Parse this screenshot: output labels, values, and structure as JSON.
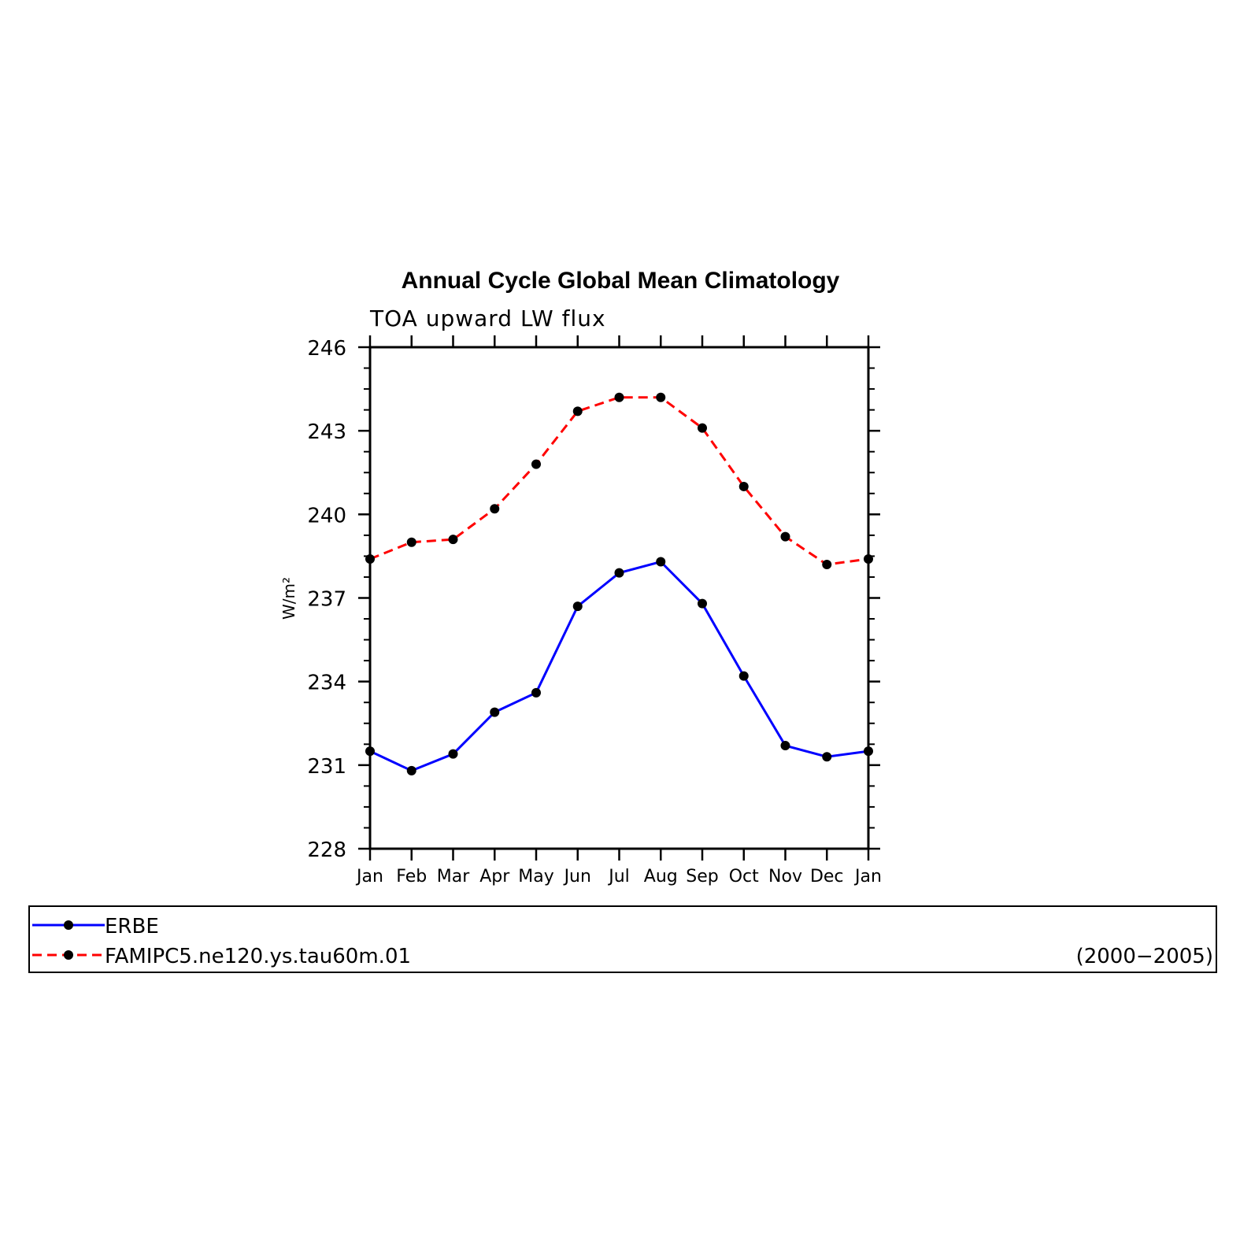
{
  "chart_data": {
    "type": "line",
    "title": "Annual Cycle Global Mean Climatology",
    "subtitle": "TOA upward LW flux",
    "ylabel": "W/m²",
    "ylim": [
      228,
      246
    ],
    "yticks": [
      228,
      231,
      234,
      237,
      240,
      243,
      246
    ],
    "categories": [
      "Jan",
      "Feb",
      "Mar",
      "Apr",
      "May",
      "Jun",
      "Jul",
      "Aug",
      "Sep",
      "Oct",
      "Nov",
      "Dec",
      "Jan"
    ],
    "series": [
      {
        "name": "ERBE",
        "color": "#0000ff",
        "line_style": "solid",
        "values": [
          231.5,
          230.8,
          231.4,
          232.9,
          233.6,
          236.7,
          237.9,
          238.3,
          236.8,
          234.2,
          231.7,
          231.3,
          231.5
        ]
      },
      {
        "name": "FAMIPC5.ne120.ys.tau60m.01",
        "color": "#ff0000",
        "line_style": "dashed",
        "values": [
          238.4,
          239.0,
          239.1,
          240.2,
          241.8,
          243.7,
          244.2,
          244.2,
          243.1,
          241.0,
          239.2,
          238.2,
          238.4
        ]
      }
    ],
    "marker_color": "#000000",
    "grid": false,
    "legend": {
      "placement": "bottom",
      "note": "(2000−2005)"
    }
  }
}
